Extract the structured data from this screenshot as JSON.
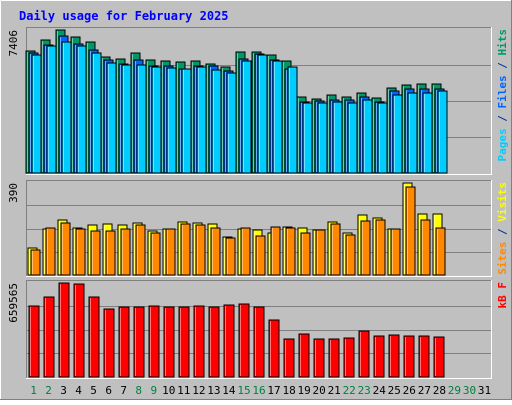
{
  "chart_data": {
    "type": "bar",
    "title": "Daily usage for February 2025",
    "categories": [
      "1",
      "2",
      "3",
      "4",
      "5",
      "6",
      "7",
      "8",
      "9",
      "10",
      "11",
      "12",
      "13",
      "14",
      "15",
      "16",
      "17",
      "18",
      "19",
      "20",
      "21",
      "22",
      "23",
      "24",
      "25",
      "26",
      "27",
      "28",
      "29",
      "30",
      "31"
    ],
    "weekend_days": [
      1,
      2,
      8,
      9,
      15,
      16,
      22,
      23,
      29,
      30
    ],
    "data_days": 28,
    "panels": [
      {
        "id": "top",
        "max_label": "7406",
        "ymax": 7406,
        "legend": [
          {
            "text": "Pages",
            "color": "#00ccff"
          },
          {
            "text": " / ",
            "color": "#003399"
          },
          {
            "text": "Files",
            "color": "#0066ff"
          },
          {
            "text": " / ",
            "color": "#003399"
          },
          {
            "text": "Hits",
            "color": "#009966"
          }
        ],
        "series": [
          {
            "name": "Hits",
            "color": "#009966",
            "values": [
              6300,
              6900,
              7406,
              7050,
              6800,
              6000,
              5900,
              6200,
              5850,
              5800,
              5750,
              5800,
              5650,
              5500,
              6250,
              6250,
              6120,
              5800,
              3950,
              3850,
              4050,
              3960,
              4150,
              3900,
              4400,
              4550,
              4600,
              4600
            ]
          },
          {
            "name": "Files",
            "color": "#0066ff",
            "values": [
              6200,
              6650,
              7100,
              6700,
              6350,
              5850,
              5650,
              5850,
              5550,
              5550,
              5400,
              5550,
              5550,
              5300,
              5900,
              6150,
              5850,
              5400,
              3700,
              3750,
              3800,
              3800,
              3950,
              3700,
              4250,
              4350,
              4350,
              4350
            ]
          },
          {
            "name": "Pages",
            "color": "#00ccff",
            "values": [
              6100,
              6600,
              6800,
              6600,
              6200,
              5700,
              5600,
              5600,
              5500,
              5450,
              5400,
              5500,
              5350,
              5200,
              5800,
              6100,
              5800,
              5500,
              3600,
              3600,
              3700,
              3650,
              3800,
              3650,
              4050,
              4150,
              4150,
              4250
            ]
          }
        ]
      },
      {
        "id": "mid",
        "max_label": "390",
        "ymax": 390,
        "legend": [
          {
            "text": "Sites",
            "color": "#ff8800"
          },
          {
            "text": " / ",
            "color": "#003399"
          },
          {
            "text": "Visits",
            "color": "#ffff00"
          }
        ],
        "series": [
          {
            "name": "Visits",
            "color": "#ffff00",
            "values": [
              115,
              195,
              235,
              200,
              210,
              215,
              210,
              220,
              185,
              195,
              225,
              220,
              215,
              160,
              195,
              190,
              180,
              205,
              200,
              190,
              225,
              180,
              255,
              240,
              195,
              390,
              260,
              260
            ]
          },
          {
            "name": "Sites",
            "color": "#ff8800",
            "values": [
              105,
              200,
              220,
              195,
              185,
              185,
              195,
              210,
              180,
              195,
              215,
              210,
              200,
              155,
              200,
              165,
              205,
              200,
              180,
              190,
              215,
              170,
              230,
              235,
              195,
              375,
              235,
              200
            ]
          }
        ]
      },
      {
        "id": "bottom",
        "max_label": "659565",
        "ymax": 659565,
        "legend": [
          {
            "text": "kB F",
            "color": "#ff0000"
          }
        ],
        "series": [
          {
            "name": "kB F",
            "color": "#ff0000",
            "values": [
              500000,
              560000,
              659565,
              650000,
              560000,
              480000,
              490000,
              490000,
              500000,
              490000,
              490000,
              500000,
              490000,
              505000,
              515000,
              490000,
              400000,
              270000,
              300000,
              270000,
              270000,
              275000,
              320000,
              290000,
              295000,
              285000,
              285000,
              280000
            ]
          }
        ]
      }
    ]
  }
}
